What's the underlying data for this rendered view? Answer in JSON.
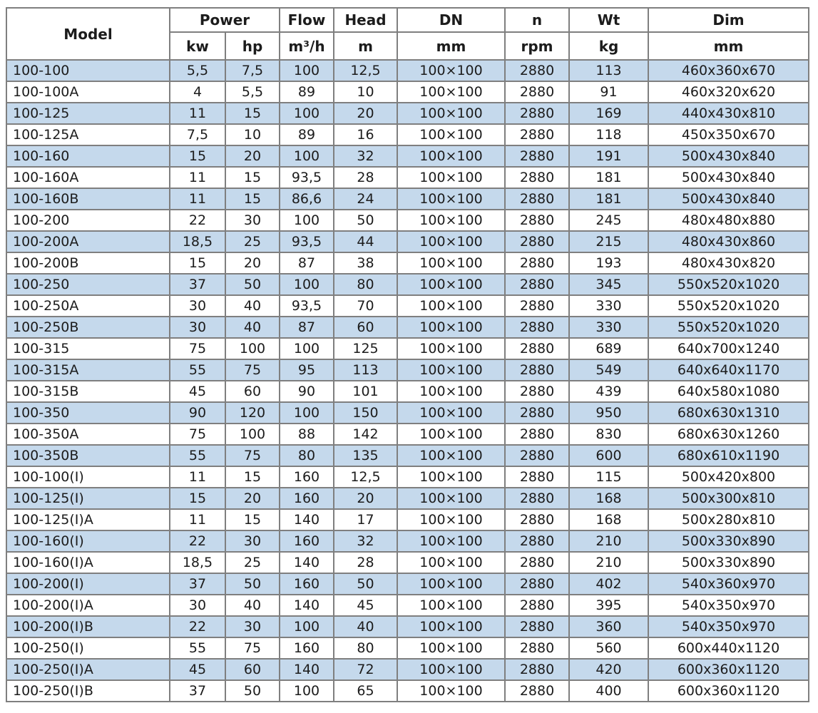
{
  "colors": {
    "stripe_blue": "#c5d9ec",
    "stripe_white": "#ffffff",
    "border_gray": "#7f7f7f",
    "text": "#1c1c1c"
  },
  "table": {
    "header": {
      "model": "Model",
      "power": "Power",
      "power_kw": "kw",
      "power_hp": "hp",
      "flow": "Flow",
      "flow_unit": "m³/h",
      "head": "Head",
      "head_unit": "m",
      "dn": "DN",
      "dn_unit": "mm",
      "n": "n",
      "n_unit": "rpm",
      "wt": "Wt",
      "wt_unit": "kg",
      "dim": "Dim",
      "dim_unit": "mm"
    },
    "rows": [
      [
        "100-100",
        "5,5",
        "7,5",
        "100",
        "12,5",
        "100×100",
        "2880",
        "113",
        "460x360x670"
      ],
      [
        "100-100A",
        "4",
        "5,5",
        "89",
        "10",
        "100×100",
        "2880",
        "91",
        "460x320x620"
      ],
      [
        "100-125",
        "11",
        "15",
        "100",
        "20",
        "100×100",
        "2880",
        "169",
        "440x430x810"
      ],
      [
        "100-125A",
        "7,5",
        "10",
        "89",
        "16",
        "100×100",
        "2880",
        "118",
        "450x350x670"
      ],
      [
        "100-160",
        "15",
        "20",
        "100",
        "32",
        "100×100",
        "2880",
        "191",
        "500x430x840"
      ],
      [
        "100-160A",
        "11",
        "15",
        "93,5",
        "28",
        "100×100",
        "2880",
        "181",
        "500x430x840"
      ],
      [
        "100-160B",
        "11",
        "15",
        "86,6",
        "24",
        "100×100",
        "2880",
        "181",
        "500x430x840"
      ],
      [
        "100-200",
        "22",
        "30",
        "100",
        "50",
        "100×100",
        "2880",
        "245",
        "480x480x880"
      ],
      [
        "100-200A",
        "18,5",
        "25",
        "93,5",
        "44",
        "100×100",
        "2880",
        "215",
        "480x430x860"
      ],
      [
        "100-200B",
        "15",
        "20",
        "87",
        "38",
        "100×100",
        "2880",
        "193",
        "480x430x820"
      ],
      [
        "100-250",
        "37",
        "50",
        "100",
        "80",
        "100×100",
        "2880",
        "345",
        "550x520x1020"
      ],
      [
        "100-250A",
        "30",
        "40",
        "93,5",
        "70",
        "100×100",
        "2880",
        "330",
        "550x520x1020"
      ],
      [
        "100-250B",
        "30",
        "40",
        "87",
        "60",
        "100×100",
        "2880",
        "330",
        "550x520x1020"
      ],
      [
        "100-315",
        "75",
        "100",
        "100",
        "125",
        "100×100",
        "2880",
        "689",
        "640x700x1240"
      ],
      [
        "100-315A",
        "55",
        "75",
        "95",
        "113",
        "100×100",
        "2880",
        "549",
        "640x640x1170"
      ],
      [
        "100-315B",
        "45",
        "60",
        "90",
        "101",
        "100×100",
        "2880",
        "439",
        "640x580x1080"
      ],
      [
        "100-350",
        "90",
        "120",
        "100",
        "150",
        "100×100",
        "2880",
        "950",
        "680x630x1310"
      ],
      [
        "100-350A",
        "75",
        "100",
        "88",
        "142",
        "100×100",
        "2880",
        "830",
        "680x630x1260"
      ],
      [
        "100-350B",
        "55",
        "75",
        "80",
        "135",
        "100×100",
        "2880",
        "600",
        "680x610x1190"
      ],
      [
        "100-100(I)",
        "11",
        "15",
        "160",
        "12,5",
        "100×100",
        "2880",
        "115",
        "500x420x800"
      ],
      [
        "100-125(I)",
        "15",
        "20",
        "160",
        "20",
        "100×100",
        "2880",
        "168",
        "500x300x810"
      ],
      [
        "100-125(I)A",
        "11",
        "15",
        "140",
        "17",
        "100×100",
        "2880",
        "168",
        "500x280x810"
      ],
      [
        "100-160(I)",
        "22",
        "30",
        "160",
        "32",
        "100×100",
        "2880",
        "210",
        "500x330x890"
      ],
      [
        "100-160(I)A",
        "18,5",
        "25",
        "140",
        "28",
        "100×100",
        "2880",
        "210",
        "500x330x890"
      ],
      [
        "100-200(I)",
        "37",
        "50",
        "160",
        "50",
        "100×100",
        "2880",
        "402",
        "540x360x970"
      ],
      [
        "100-200(I)A",
        "30",
        "40",
        "140",
        "45",
        "100×100",
        "2880",
        "395",
        "540x350x970"
      ],
      [
        "100-200(I)B",
        "22",
        "30",
        "100",
        "40",
        "100×100",
        "2880",
        "360",
        "540x350x970"
      ],
      [
        "100-250(I)",
        "55",
        "75",
        "160",
        "80",
        "100×100",
        "2880",
        "560",
        "600x440x1120"
      ],
      [
        "100-250(I)A",
        "45",
        "60",
        "140",
        "72",
        "100×100",
        "2880",
        "420",
        "600x360x1120"
      ],
      [
        "100-250(I)B",
        "37",
        "50",
        "100",
        "65",
        "100×100",
        "2880",
        "400",
        "600x360x1120"
      ]
    ]
  },
  "chart_data": {
    "type": "table",
    "title": "Pump model specification table",
    "columns": [
      "Model",
      "Power kw",
      "Power hp",
      "Flow m³/h",
      "Head m",
      "DN mm",
      "n rpm",
      "Wt kg",
      "Dim mm"
    ]
  }
}
